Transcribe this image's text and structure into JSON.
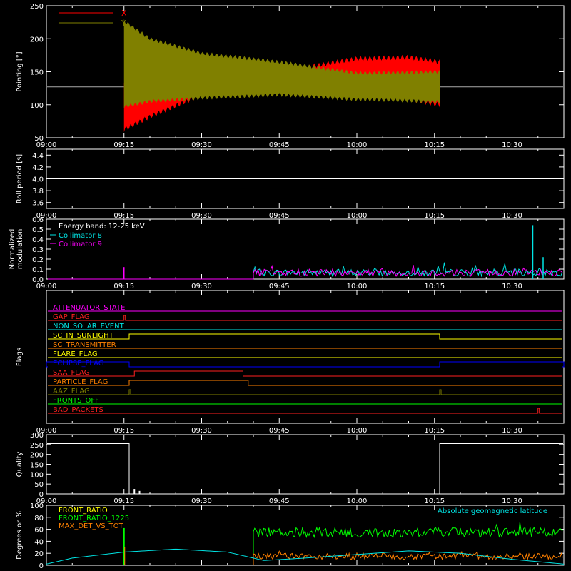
{
  "chart_data": [
    {
      "type": "line",
      "ylabel": "Pointing [°]",
      "ylim": [
        50,
        250
      ],
      "yticks": [
        "50",
        "100",
        "150",
        "200",
        "250"
      ],
      "xticks": [
        "09:00",
        "09:15",
        "09:30",
        "09:45",
        "10:00",
        "10:15",
        "10:30"
      ],
      "legend": [
        {
          "name": "X",
          "color": "#ff0000"
        },
        {
          "name": "Y",
          "color": "#808000"
        }
      ],
      "nominal_value": 127,
      "activity_start": "09:15",
      "activity_end": "10:16",
      "x_envelope": {
        "time": [
          "09:15",
          "09:20",
          "09:30",
          "09:45",
          "10:00",
          "10:10",
          "10:16"
        ],
        "upper": [
          130,
          140,
          145,
          150,
          170,
          172,
          165
        ],
        "lower": [
          62,
          82,
          115,
          122,
          112,
          108,
          100
        ]
      },
      "y_envelope": {
        "time": [
          "09:15",
          "09:20",
          "09:30",
          "09:45",
          "10:00",
          "10:10",
          "10:16"
        ],
        "upper": [
          227,
          200,
          178,
          165,
          148,
          149,
          150
        ],
        "lower": [
          97,
          105,
          110,
          115,
          108,
          106,
          104
        ]
      }
    },
    {
      "type": "line",
      "ylabel": "Roll period [s]",
      "ylim": [
        3.5,
        4.5
      ],
      "yticks": [
        "3.6",
        "3.8",
        "4.0",
        "4.2",
        "4.4"
      ],
      "xticks": [
        "09:00",
        "09:15",
        "09:30",
        "09:45",
        "10:00",
        "10:15",
        "10:30"
      ],
      "value": 4.0
    },
    {
      "type": "line",
      "ylabel": "Normalized modulation",
      "ylabel_lines": [
        "Normalized",
        "modulation"
      ],
      "ylim": [
        0,
        0.6
      ],
      "yticks": [
        "0.0",
        "0.1",
        "0.2",
        "0.3",
        "0.4",
        "0.5",
        "0.6"
      ],
      "xticks": [
        "09:00",
        "09:15",
        "09:30",
        "09:45",
        "10:00",
        "10:15",
        "10:30"
      ],
      "legend_title": "Energy band: 12-25 keV",
      "legend": [
        {
          "name": "Collimator 8",
          "color": "#00e5e5"
        },
        {
          "name": "Collimator 9",
          "color": "#ff00ff"
        }
      ],
      "activity_start": "09:40",
      "spikes": [
        {
          "time": "09:15",
          "value": 0.12,
          "color": "#ff00ff"
        },
        {
          "time": "10:34",
          "value": 0.54,
          "color": "#00e5e5"
        },
        {
          "time": "10:36",
          "value": 0.22,
          "color": "#00e5e5"
        }
      ]
    },
    {
      "type": "line",
      "ylabel": "Flags",
      "xticks": [
        "09:00",
        "09:15",
        "09:30",
        "09:45",
        "10:00",
        "10:15",
        "10:30"
      ],
      "flags": [
        {
          "name": "ATTENUATOR_STATE",
          "color": "#ff00ff",
          "intervals": []
        },
        {
          "name": "GAP_FLAG",
          "color": "#ff2020",
          "intervals": [
            [
              "09:15",
              "09:15"
            ]
          ]
        },
        {
          "name": "NON_SOLAR_EVENT",
          "color": "#00e5e5",
          "intervals": []
        },
        {
          "name": "SC_IN_SUNLIGHT",
          "color": "#ffff00",
          "intervals": [
            [
              "09:16",
              "10:16"
            ]
          ]
        },
        {
          "name": "SC_TRANSMITTER",
          "color": "#ff8000",
          "intervals": []
        },
        {
          "name": "FLARE_FLAG",
          "color": "#ffff00",
          "intervals": []
        },
        {
          "name": "ECLIPSE_FLAG",
          "color": "#0000ff",
          "intervals": [
            [
              "09:00",
              "09:16"
            ],
            [
              "10:16",
              "10:40"
            ]
          ]
        },
        {
          "name": "SAA_FLAG",
          "color": "#ff2020",
          "intervals": [
            [
              "09:17",
              "09:38"
            ]
          ]
        },
        {
          "name": "PARTICLE_FLAG",
          "color": "#ff8000",
          "intervals": [
            [
              "09:16",
              "09:39"
            ]
          ]
        },
        {
          "name": "AAZ_FLAG",
          "color": "#808000",
          "intervals": [
            [
              "09:16",
              "09:16"
            ],
            [
              "10:16",
              "10:16"
            ]
          ]
        },
        {
          "name": "FRONTS_OFF",
          "color": "#00ff00",
          "intervals": []
        },
        {
          "name": "BAD_PACKETS",
          "color": "#ff2020",
          "intervals": [
            [
              "10:35",
              "10:35"
            ]
          ]
        }
      ]
    },
    {
      "type": "line",
      "ylabel": "Quality",
      "ylim": [
        0,
        300
      ],
      "yticks": [
        "0",
        "50",
        "100",
        "150",
        "200",
        "250",
        "300"
      ],
      "xticks": [
        "09:00",
        "09:15",
        "09:30",
        "09:45",
        "10:00",
        "10:15",
        "10:30"
      ],
      "time": [
        "09:00",
        "09:16",
        "09:16",
        "10:16",
        "10:16",
        "10:40"
      ],
      "values": [
        255,
        255,
        0,
        0,
        255,
        255
      ],
      "small_bumps": [
        {
          "time": "09:17",
          "value": 25
        },
        {
          "time": "09:18",
          "value": 15
        }
      ]
    },
    {
      "type": "line",
      "ylabel": "Degrees or %",
      "ylim": [
        0,
        100
      ],
      "yticks": [
        "0",
        "20",
        "40",
        "60",
        "80",
        "100"
      ],
      "xticks": [
        "09:00",
        "09:15",
        "09:30",
        "09:45",
        "10:00",
        "10:15",
        "10:30"
      ],
      "legend": [
        {
          "name": "FRONT_RATIO",
          "color": "#ffff00"
        },
        {
          "name": "FRONT_RATIO_1225",
          "color": "#00ff00"
        },
        {
          "name": "MAX_DET_VS_TOT",
          "color": "#ff8000"
        }
      ],
      "annotation": {
        "text": "Absolute geomagnetic latitude",
        "color": "#00e5e5"
      },
      "latitude": {
        "time": [
          "09:00",
          "09:05",
          "09:15",
          "09:25",
          "09:35",
          "09:42",
          "09:50",
          "10:00",
          "10:10",
          "10:20",
          "10:30",
          "10:40"
        ],
        "values": [
          2,
          12,
          22,
          27,
          22,
          8,
          12,
          18,
          24,
          20,
          10,
          2
        ]
      },
      "front_ratio_1225_level": 55,
      "max_det_vs_tot_level": 15,
      "activity_start": "09:40",
      "spike_time": "09:15",
      "spike_value": 62
    }
  ]
}
